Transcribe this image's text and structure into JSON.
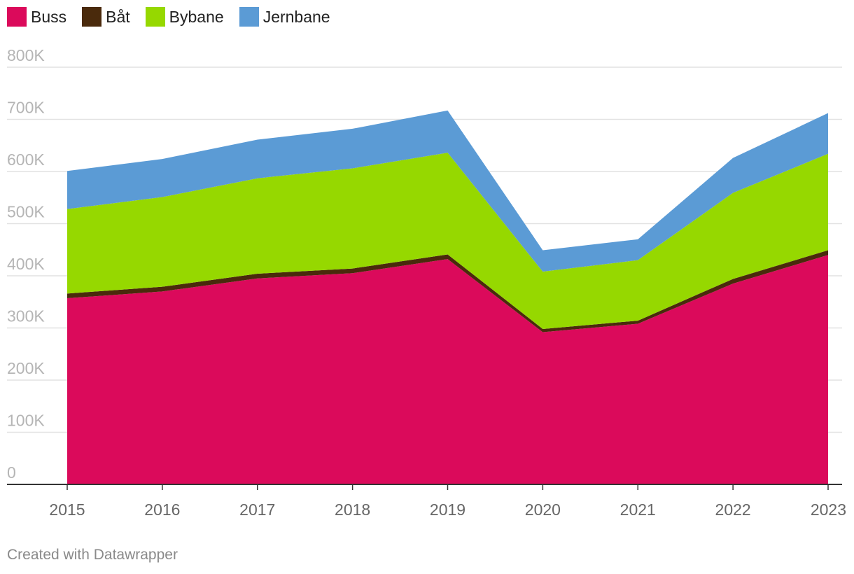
{
  "chart_data": {
    "type": "area",
    "stacked": true,
    "x": [
      "2015",
      "2016",
      "2017",
      "2018",
      "2019",
      "2020",
      "2021",
      "2022",
      "2023"
    ],
    "series": [
      {
        "name": "Buss",
        "color": "#db0a5b",
        "values": [
          357000,
          370000,
          395000,
          405000,
          432000,
          292000,
          308000,
          385000,
          440000
        ]
      },
      {
        "name": "Båt",
        "color": "#4a2a0c",
        "values": [
          9000,
          9000,
          9000,
          9000,
          9000,
          6000,
          6000,
          9000,
          9000
        ]
      },
      {
        "name": "Bybane",
        "color": "#96d800",
        "values": [
          162000,
          172000,
          183000,
          192000,
          195000,
          110000,
          116000,
          165000,
          185000
        ]
      },
      {
        "name": "Jernbane",
        "color": "#5b9bd5",
        "values": [
          73000,
          73000,
          74000,
          76000,
          81000,
          41000,
          40000,
          67000,
          78000
        ]
      }
    ],
    "y_ticks": [
      "0",
      "100K",
      "200K",
      "300K",
      "400K",
      "500K",
      "600K",
      "700K",
      "800K"
    ],
    "ylim": [
      0,
      800000
    ],
    "legend_position": "top-left",
    "grid": true
  },
  "footer": {
    "credit": "Created with Datawrapper"
  }
}
